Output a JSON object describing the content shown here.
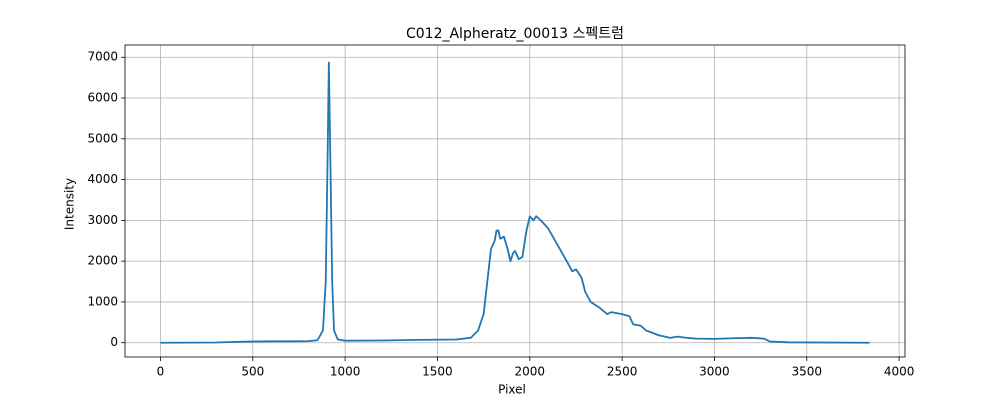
{
  "chart_data": {
    "type": "line",
    "title": "C012_Alpheratz_00013 스펙트럼",
    "xlabel": "Pixel",
    "ylabel": "Intensity",
    "color": "#1f77b4",
    "grid": true,
    "x": [
      0,
      300,
      400,
      500,
      600,
      700,
      800,
      850,
      880,
      895,
      905,
      912,
      920,
      930,
      940,
      960,
      1000,
      1200,
      1400,
      1600,
      1680,
      1720,
      1750,
      1770,
      1790,
      1810,
      1820,
      1830,
      1840,
      1860,
      1880,
      1895,
      1910,
      1920,
      1940,
      1960,
      1980,
      2000,
      2020,
      2035,
      2060,
      2100,
      2150,
      2200,
      2230,
      2250,
      2280,
      2300,
      2330,
      2380,
      2420,
      2440,
      2500,
      2540,
      2560,
      2600,
      2630,
      2660,
      2700,
      2760,
      2800,
      2850,
      2900,
      3000,
      3100,
      3200,
      3270,
      3300,
      3400,
      3840
    ],
    "values": [
      0,
      5,
      20,
      30,
      35,
      35,
      40,
      60,
      300,
      1500,
      4500,
      6870,
      4500,
      1500,
      300,
      80,
      50,
      55,
      70,
      80,
      120,
      300,
      700,
      1500,
      2300,
      2500,
      2750,
      2750,
      2550,
      2600,
      2300,
      2000,
      2200,
      2250,
      2050,
      2100,
      2700,
      3100,
      3000,
      3100,
      3000,
      2800,
      2400,
      2000,
      1750,
      1800,
      1600,
      1250,
      1000,
      850,
      700,
      750,
      700,
      650,
      450,
      420,
      300,
      250,
      180,
      120,
      150,
      120,
      100,
      95,
      110,
      120,
      100,
      30,
      10,
      0
    ],
    "xlim": [
      -192,
      4032
    ],
    "ylim": [
      -350,
      7300
    ],
    "xticks": [
      0,
      500,
      1000,
      1500,
      2000,
      2500,
      3000,
      3500,
      4000
    ],
    "yticks": [
      0,
      1000,
      2000,
      3000,
      4000,
      5000,
      6000,
      7000
    ]
  }
}
